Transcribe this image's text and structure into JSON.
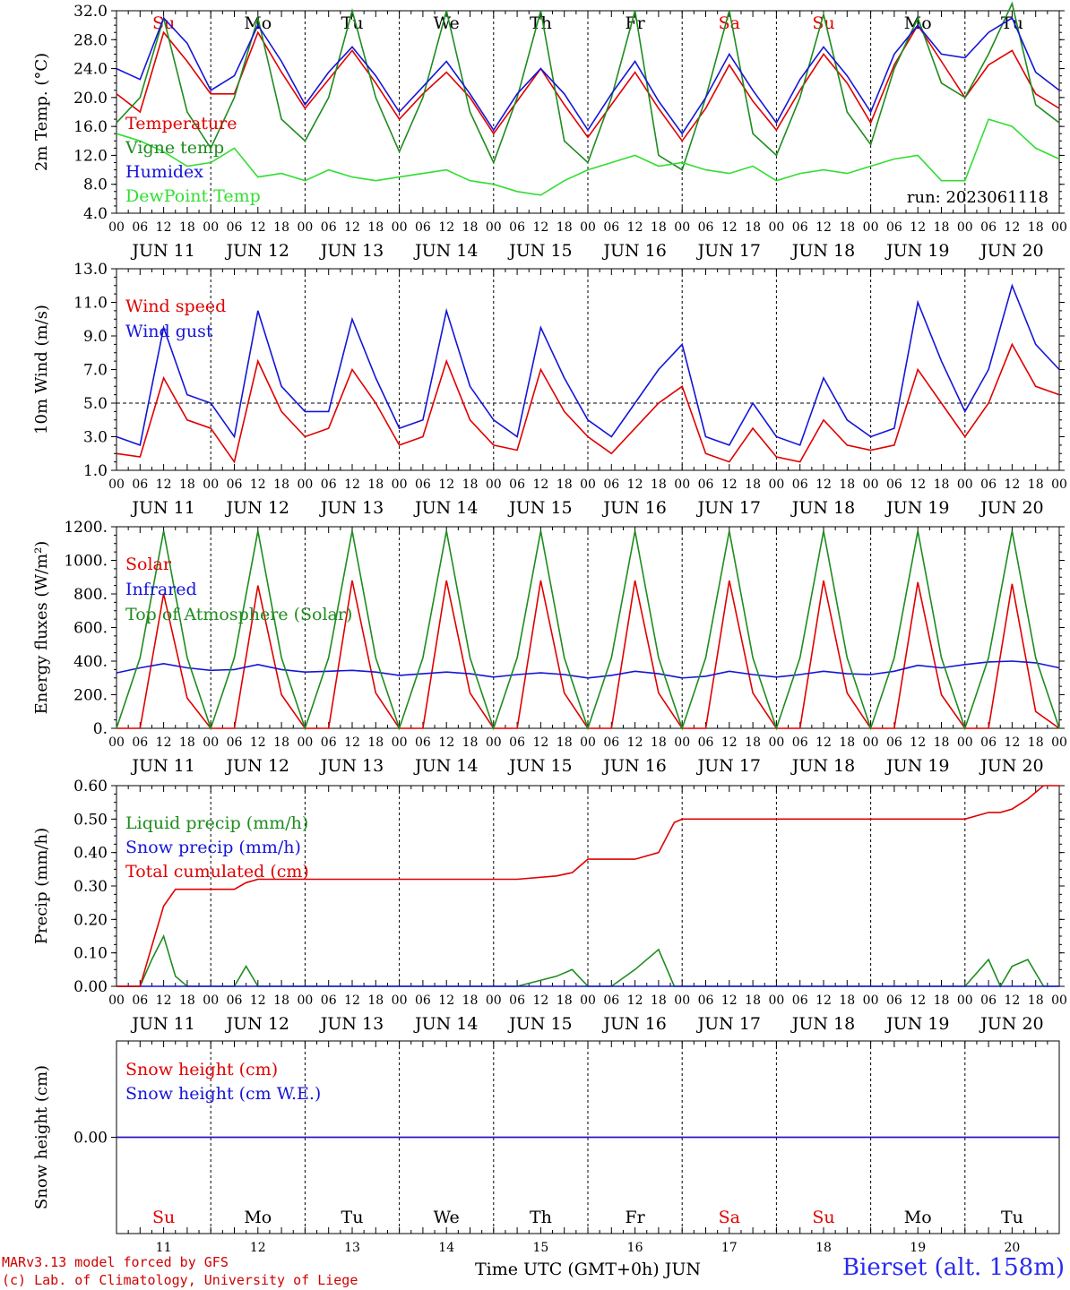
{
  "colors": {
    "temperature": "#e00000",
    "vigne": "#1e8c1e",
    "humidex": "#1515d8",
    "dewpoint": "#33dd33",
    "wind_speed": "#e00000",
    "wind_gust": "#1515d8",
    "solar": "#e00000",
    "infrared": "#1515d8",
    "toa": "#1e8c1e",
    "liquid": "#1e8c1e",
    "snow_precip": "#1515d8",
    "cumulated": "#e00000",
    "snow_cm": "#e00000",
    "snow_we": "#1515d8",
    "weekday_normal": "#000000",
    "weekday_weekend": "#e00000"
  },
  "footer": {
    "credit_line1": "MARv3.13 model forced by GFS",
    "credit_line2": "(c) Lab. of Climatology, University of Liege",
    "time_label": "Time UTC (GMT+0h) JUN",
    "station": "Bierset (alt. 158m)"
  },
  "chart_data": [
    {
      "type": "line",
      "id": "temperature",
      "ylabel": "2m Temp. (°C)",
      "ylim": [
        4.0,
        32.0
      ],
      "yticks": [
        "4.0",
        "8.0",
        "12.0",
        "16.0",
        "20.0",
        "24.0",
        "28.0",
        "32.0"
      ],
      "xlabel_days": [
        "JUN 11",
        "JUN 12",
        "JUN 13",
        "JUN 14",
        "JUN 15",
        "JUN 16",
        "JUN 17",
        "JUN 18",
        "JUN 19",
        "JUN 20"
      ],
      "hour_ticks": [
        "00",
        "06",
        "12",
        "18"
      ],
      "weekdays": [
        "Su",
        "Mo",
        "Tu",
        "We",
        "Th",
        "Fr",
        "Sa",
        "Su",
        "Mo",
        "Tu"
      ],
      "weekend_flags": [
        true,
        false,
        false,
        false,
        false,
        false,
        true,
        true,
        false,
        false
      ],
      "annotation": "run: 2023061118",
      "x_hours": [
        0,
        6,
        12,
        18,
        24,
        30,
        36,
        42,
        48,
        54,
        60,
        66,
        72,
        78,
        84,
        90,
        96,
        102,
        108,
        114,
        120,
        126,
        132,
        138,
        144,
        150,
        156,
        162,
        168,
        174,
        180,
        186,
        192,
        198,
        204,
        210,
        216,
        222,
        228,
        234,
        240
      ],
      "series": [
        {
          "name": "Temperature",
          "color": "temperature",
          "values": [
            20.5,
            18.0,
            29.0,
            25.0,
            20.5,
            20.5,
            29.0,
            23.5,
            18.5,
            22.5,
            26.5,
            22.0,
            17.0,
            20.5,
            23.5,
            20.0,
            15.0,
            19.5,
            24.0,
            19.0,
            14.5,
            19.0,
            23.5,
            18.5,
            14.0,
            18.5,
            24.5,
            19.5,
            15.5,
            21.0,
            26.0,
            22.0,
            16.5,
            24.5,
            30.0,
            25.0,
            20.0,
            24.5,
            26.5,
            20.5,
            18.5
          ]
        },
        {
          "name": "Vigne temp",
          "color": "vigne",
          "values": [
            16.5,
            20.0,
            31.0,
            18.0,
            13.0,
            20.0,
            31.0,
            17.0,
            14.0,
            20.0,
            32.0,
            20.0,
            12.5,
            20.0,
            32.0,
            18.0,
            11.0,
            20.0,
            32.0,
            14.0,
            11.0,
            20.0,
            32.0,
            12.0,
            10.0,
            20.0,
            32.0,
            15.0,
            12.0,
            20.0,
            31.5,
            18.0,
            13.5,
            24.0,
            31.0,
            22.0,
            20.0,
            26.0,
            33.0,
            19.0,
            16.5
          ]
        },
        {
          "name": "Humidex",
          "color": "humidex",
          "values": [
            24.0,
            22.5,
            31.0,
            27.5,
            21.0,
            23.0,
            30.0,
            25.0,
            19.0,
            23.5,
            27.0,
            23.0,
            18.0,
            21.5,
            25.0,
            20.5,
            15.5,
            20.5,
            24.0,
            20.5,
            15.5,
            20.5,
            25.0,
            19.5,
            15.0,
            20.0,
            26.0,
            21.0,
            16.5,
            22.5,
            27.0,
            23.0,
            18.0,
            26.0,
            30.0,
            26.0,
            25.5,
            29.0,
            31.0,
            23.5,
            21.0
          ]
        },
        {
          "name": "DewPoint Temp",
          "color": "dewpoint",
          "values": [
            15.0,
            14.0,
            12.5,
            10.5,
            11.0,
            13.0,
            9.0,
            9.5,
            8.5,
            10.0,
            9.0,
            8.5,
            9.0,
            9.5,
            10.0,
            8.5,
            8.0,
            7.0,
            6.5,
            8.5,
            10.0,
            11.0,
            12.0,
            10.5,
            11.0,
            10.0,
            9.5,
            10.5,
            8.5,
            9.5,
            10.0,
            9.5,
            10.5,
            11.5,
            12.0,
            8.5,
            8.5,
            17.0,
            16.0,
            13.0,
            11.5
          ]
        }
      ]
    },
    {
      "type": "line",
      "id": "wind",
      "ylabel": "10m Wind (m/s)",
      "ylim": [
        1.0,
        13.0
      ],
      "yticks": [
        "1.0",
        "3.0",
        "5.0",
        "7.0",
        "9.0",
        "11.0",
        "13.0"
      ],
      "reference_line": 5.0,
      "xlabel_days": [
        "JUN 11",
        "JUN 12",
        "JUN 13",
        "JUN 14",
        "JUN 15",
        "JUN 16",
        "JUN 17",
        "JUN 18",
        "JUN 19",
        "JUN 20"
      ],
      "x_hours": [
        0,
        6,
        12,
        18,
        24,
        30,
        36,
        42,
        48,
        54,
        60,
        66,
        72,
        78,
        84,
        90,
        96,
        102,
        108,
        114,
        120,
        126,
        132,
        138,
        144,
        150,
        156,
        162,
        168,
        174,
        180,
        186,
        192,
        198,
        204,
        210,
        216,
        222,
        228,
        234,
        240
      ],
      "series": [
        {
          "name": "Wind speed",
          "color": "wind_speed",
          "values": [
            2.0,
            1.8,
            6.5,
            4.0,
            3.5,
            1.5,
            7.5,
            4.5,
            3.0,
            3.5,
            7.0,
            5.0,
            2.5,
            3.0,
            7.5,
            4.0,
            2.5,
            2.2,
            7.0,
            4.5,
            3.0,
            2.0,
            3.5,
            5.0,
            6.0,
            2.0,
            1.5,
            3.5,
            1.8,
            1.5,
            4.0,
            2.5,
            2.2,
            2.5,
            7.0,
            5.0,
            3.0,
            5.0,
            8.5,
            6.0,
            5.5
          ]
        },
        {
          "name": "Wind gust",
          "color": "wind_gust",
          "values": [
            3.0,
            2.5,
            9.5,
            5.5,
            5.0,
            3.0,
            10.5,
            6.0,
            4.5,
            4.5,
            10.0,
            6.5,
            3.5,
            4.0,
            10.5,
            6.0,
            4.0,
            3.0,
            9.5,
            6.5,
            4.0,
            3.0,
            5.0,
            7.0,
            8.5,
            3.0,
            2.5,
            5.0,
            3.0,
            2.5,
            6.5,
            4.0,
            3.0,
            3.5,
            11.0,
            7.5,
            4.5,
            7.0,
            12.0,
            8.5,
            7.0
          ]
        }
      ]
    },
    {
      "type": "line",
      "id": "energy",
      "ylabel": "Energy fluxes (W/m²)",
      "ylim": [
        0,
        1200
      ],
      "yticks": [
        "0.",
        "200.",
        "400.",
        "600.",
        "800.",
        "1000.",
        "1200."
      ],
      "xlabel_days": [
        "JUN 11",
        "JUN 12",
        "JUN 13",
        "JUN 14",
        "JUN 15",
        "JUN 16",
        "JUN 17",
        "JUN 18",
        "JUN 19",
        "JUN 20"
      ],
      "x_hours": [
        0,
        6,
        12,
        18,
        24,
        30,
        36,
        42,
        48,
        54,
        60,
        66,
        72,
        78,
        84,
        90,
        96,
        102,
        108,
        114,
        120,
        126,
        132,
        138,
        144,
        150,
        156,
        162,
        168,
        174,
        180,
        186,
        192,
        198,
        204,
        210,
        216,
        222,
        228,
        234,
        240
      ],
      "series": [
        {
          "name": "Solar",
          "color": "solar",
          "values": [
            0,
            0,
            800,
            180,
            0,
            0,
            850,
            200,
            0,
            0,
            880,
            210,
            0,
            0,
            880,
            210,
            0,
            0,
            880,
            210,
            0,
            0,
            880,
            210,
            0,
            0,
            880,
            210,
            0,
            0,
            880,
            210,
            0,
            0,
            870,
            200,
            0,
            0,
            860,
            100,
            0
          ]
        },
        {
          "name": "Infrared",
          "color": "infrared",
          "values": [
            330,
            360,
            385,
            360,
            345,
            350,
            380,
            350,
            335,
            340,
            345,
            335,
            315,
            325,
            335,
            325,
            305,
            320,
            330,
            320,
            300,
            315,
            340,
            325,
            300,
            310,
            340,
            320,
            305,
            320,
            340,
            325,
            320,
            340,
            375,
            360,
            380,
            395,
            400,
            390,
            360
          ]
        },
        {
          "name": "Top of Atmosphere (Solar)",
          "color": "toa",
          "values": [
            0,
            420,
            1175,
            420,
            0,
            420,
            1175,
            420,
            0,
            420,
            1175,
            420,
            0,
            420,
            1175,
            420,
            0,
            420,
            1175,
            420,
            0,
            420,
            1175,
            420,
            0,
            420,
            1175,
            420,
            0,
            420,
            1175,
            420,
            0,
            420,
            1175,
            420,
            0,
            420,
            1175,
            420,
            0
          ]
        }
      ]
    },
    {
      "type": "line",
      "id": "precip",
      "ylabel": "Precip (mm/h)",
      "ylim": [
        0.0,
        0.6
      ],
      "yticks": [
        "0.00",
        "0.10",
        "0.20",
        "0.30",
        "0.40",
        "0.50",
        "0.60"
      ],
      "xlabel_days": [
        "JUN 11",
        "JUN 12",
        "JUN 13",
        "JUN 14",
        "JUN 15",
        "JUN 16",
        "JUN 17",
        "JUN 18",
        "JUN 19",
        "JUN 20"
      ],
      "x_hours": [
        0,
        6,
        9,
        12,
        15,
        18,
        21,
        24,
        30,
        33,
        36,
        48,
        72,
        96,
        102,
        112,
        116,
        120,
        126,
        132,
        138,
        142,
        144,
        168,
        192,
        216,
        222,
        225,
        228,
        232,
        236,
        240
      ],
      "series": [
        {
          "name": "Liquid precip (mm/h)",
          "color": "liquid",
          "values": [
            0,
            0,
            0.08,
            0.15,
            0.03,
            0,
            0,
            0,
            0,
            0.06,
            0,
            0,
            0,
            0,
            0,
            0.03,
            0.05,
            0,
            0,
            0.05,
            0.11,
            0,
            0,
            0,
            0,
            0,
            0.08,
            0,
            0.06,
            0.08,
            0,
            0
          ]
        },
        {
          "name": "Snow precip (mm/h)",
          "color": "snow_precip",
          "values": [
            0,
            0,
            0,
            0,
            0,
            0,
            0,
            0,
            0,
            0,
            0,
            0,
            0,
            0,
            0,
            0,
            0,
            0,
            0,
            0,
            0,
            0,
            0,
            0,
            0,
            0,
            0,
            0,
            0,
            0,
            0,
            0
          ]
        },
        {
          "name": "Total cumulated (cm)",
          "color": "cumulated",
          "values": [
            0,
            0,
            0.12,
            0.24,
            0.29,
            0.29,
            0.29,
            0.29,
            0.29,
            0.31,
            0.32,
            0.32,
            0.32,
            0.32,
            0.32,
            0.33,
            0.34,
            0.38,
            0.38,
            0.38,
            0.4,
            0.49,
            0.5,
            0.5,
            0.5,
            0.5,
            0.52,
            0.52,
            0.53,
            0.56,
            0.6,
            0.6
          ]
        }
      ]
    },
    {
      "type": "line",
      "id": "snow",
      "ylabel": "Snow height (cm)",
      "ylim": [
        -1,
        1
      ],
      "yticks": [
        "0.00"
      ],
      "x_hours": [
        0,
        240
      ],
      "weekdays": [
        "Su",
        "Mo",
        "Tu",
        "We",
        "Th",
        "Fr",
        "Sa",
        "Su",
        "Mo",
        "Tu"
      ],
      "weekend_flags": [
        true,
        false,
        false,
        false,
        false,
        false,
        true,
        true,
        false,
        false
      ],
      "day_numbers": [
        "11",
        "12",
        "13",
        "14",
        "15",
        "16",
        "17",
        "18",
        "19",
        "20"
      ],
      "series": [
        {
          "name": "Snow height (cm)",
          "color": "snow_cm",
          "values": [
            0,
            0
          ]
        },
        {
          "name": "Snow height (cm W.E.)",
          "color": "snow_we",
          "values": [
            0,
            0
          ]
        }
      ]
    }
  ]
}
